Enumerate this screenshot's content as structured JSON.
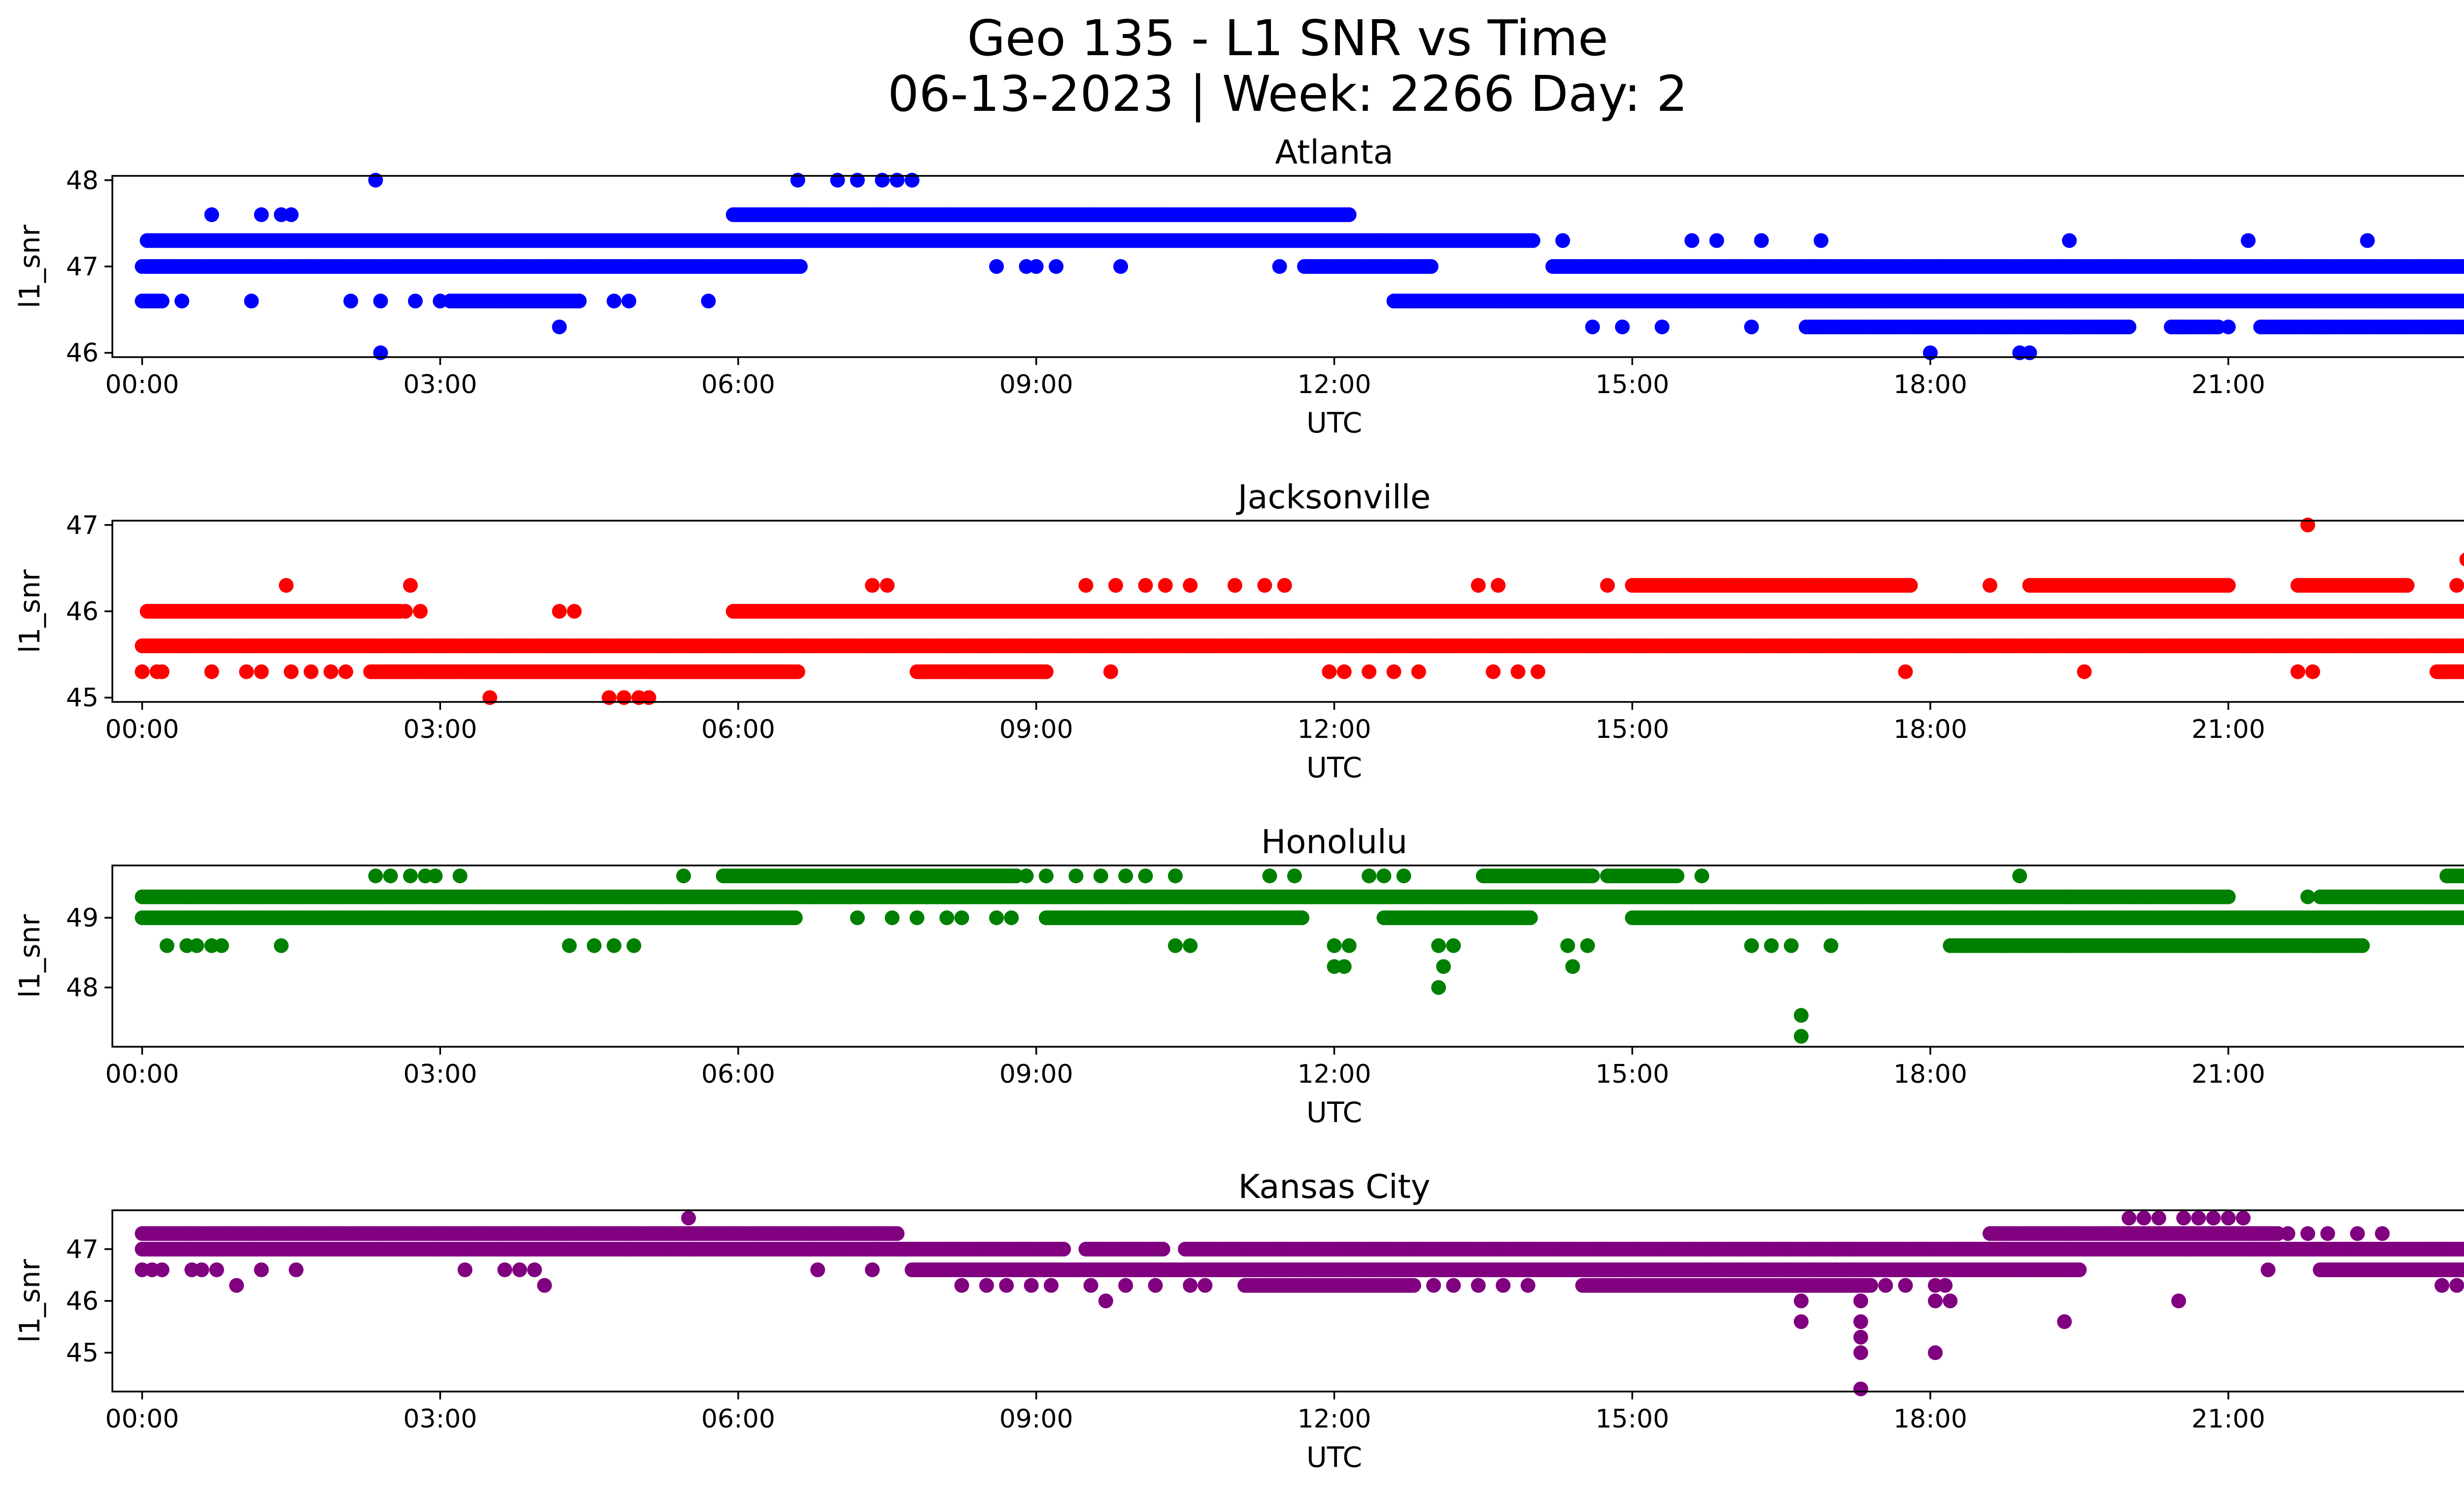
{
  "figure": {
    "title_line1": "Geo 135 - L1 SNR vs Time",
    "title_line2": "06-13-2023 | Week: 2266 Day: 2"
  },
  "chart_data": [
    {
      "type": "scatter",
      "title": "Atlanta",
      "xlabel": "UTC",
      "ylabel": "l1_snr",
      "color": "#0000ff",
      "xlim": [
        -0.3,
        24.3
      ],
      "ylim": [
        45.95,
        48.05
      ],
      "xticks": [
        "00:00",
        "03:00",
        "06:00",
        "09:00",
        "12:00",
        "15:00",
        "18:00",
        "21:00",
        "00:00"
      ],
      "yticks": [
        46,
        47,
        48
      ],
      "runs": [
        {
          "y": 47.0,
          "x0": 0.0,
          "x1": 24.0,
          "gaps": [
            [
              6.65,
              11.7
            ],
            [
              13.0,
              14.2
            ]
          ]
        },
        {
          "y": 47.3,
          "x0": 0.05,
          "x1": 14.0,
          "gaps": []
        },
        {
          "y": 46.6,
          "x0": 0.0,
          "x1": 0.2,
          "gaps": []
        },
        {
          "y": 46.6,
          "x0": 3.1,
          "x1": 4.4,
          "gaps": []
        },
        {
          "y": 46.6,
          "x0": 12.6,
          "x1": 24.0,
          "gaps": []
        },
        {
          "y": 47.6,
          "x0": 5.95,
          "x1": 12.15,
          "gaps": []
        },
        {
          "y": 46.3,
          "x0": 16.75,
          "x1": 24.0,
          "gaps": [
            [
              20.0,
              20.4
            ],
            [
              20.9,
              21.3
            ]
          ]
        }
      ],
      "points": [
        [
          0.7,
          47.6
        ],
        [
          1.2,
          47.6
        ],
        [
          1.4,
          47.6
        ],
        [
          1.5,
          47.6
        ],
        [
          2.35,
          48.0
        ],
        [
          6.6,
          48.0
        ],
        [
          7.0,
          48.0
        ],
        [
          7.2,
          48.0
        ],
        [
          7.45,
          48.0
        ],
        [
          7.6,
          48.0
        ],
        [
          7.75,
          48.0
        ],
        [
          2.4,
          46.0
        ],
        [
          18.0,
          46.0
        ],
        [
          18.9,
          46.0
        ],
        [
          19.0,
          46.0
        ],
        [
          4.2,
          46.3
        ],
        [
          14.6,
          46.3
        ],
        [
          14.9,
          46.3
        ],
        [
          15.3,
          46.3
        ],
        [
          16.2,
          46.3
        ],
        [
          0.4,
          46.6
        ],
        [
          1.1,
          46.6
        ],
        [
          2.1,
          46.6
        ],
        [
          2.4,
          46.6
        ],
        [
          2.75,
          46.6
        ],
        [
          3.0,
          46.6
        ],
        [
          4.75,
          46.6
        ],
        [
          4.9,
          46.6
        ],
        [
          5.7,
          46.6
        ],
        [
          8.6,
          47.0
        ],
        [
          8.9,
          47.0
        ],
        [
          9.0,
          47.0
        ],
        [
          9.2,
          47.0
        ],
        [
          9.85,
          47.0
        ],
        [
          11.45,
          47.0
        ],
        [
          14.3,
          47.3
        ],
        [
          15.6,
          47.3
        ],
        [
          15.85,
          47.3
        ],
        [
          16.3,
          47.3
        ],
        [
          16.9,
          47.3
        ],
        [
          18.1,
          47.0
        ],
        [
          19.3,
          47.0
        ],
        [
          19.4,
          47.3
        ],
        [
          21.2,
          47.3
        ],
        [
          22.4,
          47.3
        ],
        [
          20.5,
          46.3
        ],
        [
          21.0,
          46.3
        ],
        [
          22.0,
          46.3
        ],
        [
          23.5,
          46.3
        ]
      ]
    },
    {
      "type": "scatter",
      "title": "Jacksonville",
      "xlabel": "UTC",
      "ylabel": "l1_snr",
      "color": "#ff0000",
      "xlim": [
        -0.3,
        24.3
      ],
      "ylim": [
        44.95,
        47.05
      ],
      "xticks": [
        "00:00",
        "03:00",
        "06:00",
        "09:00",
        "12:00",
        "15:00",
        "18:00",
        "21:00",
        "00:00"
      ],
      "yticks": [
        45,
        46,
        47
      ],
      "runs": [
        {
          "y": 45.6,
          "x0": 0.0,
          "x1": 24.0,
          "gaps": []
        },
        {
          "y": 46.0,
          "x0": 0.05,
          "x1": 2.6,
          "gaps": []
        },
        {
          "y": 46.0,
          "x0": 5.95,
          "x1": 24.0,
          "gaps": []
        },
        {
          "y": 45.3,
          "x0": 2.3,
          "x1": 6.6,
          "gaps": []
        },
        {
          "y": 45.3,
          "x0": 7.8,
          "x1": 9.1,
          "gaps": []
        },
        {
          "y": 45.3,
          "x0": 23.1,
          "x1": 24.0,
          "gaps": []
        },
        {
          "y": 46.3,
          "x0": 15.0,
          "x1": 17.8,
          "gaps": []
        },
        {
          "y": 46.3,
          "x0": 19.0,
          "x1": 21.0,
          "gaps": []
        },
        {
          "y": 46.3,
          "x0": 21.7,
          "x1": 22.8,
          "gaps": []
        }
      ],
      "points": [
        [
          0.0,
          45.3
        ],
        [
          0.15,
          45.3
        ],
        [
          0.2,
          45.3
        ],
        [
          0.7,
          45.3
        ],
        [
          1.05,
          45.3
        ],
        [
          1.2,
          45.3
        ],
        [
          1.5,
          45.3
        ],
        [
          1.7,
          45.3
        ],
        [
          1.9,
          45.3
        ],
        [
          2.05,
          45.3
        ],
        [
          1.45,
          46.3
        ],
        [
          2.7,
          46.3
        ],
        [
          2.65,
          46.0
        ],
        [
          2.8,
          46.0
        ],
        [
          3.5,
          45.0
        ],
        [
          4.2,
          46.0
        ],
        [
          4.35,
          46.0
        ],
        [
          4.7,
          45.0
        ],
        [
          4.85,
          45.0
        ],
        [
          5.0,
          45.0
        ],
        [
          5.1,
          45.0
        ],
        [
          7.35,
          46.3
        ],
        [
          7.5,
          46.3
        ],
        [
          9.5,
          46.3
        ],
        [
          9.8,
          46.3
        ],
        [
          10.1,
          46.3
        ],
        [
          10.3,
          46.3
        ],
        [
          10.55,
          46.3
        ],
        [
          11.0,
          46.3
        ],
        [
          11.3,
          46.3
        ],
        [
          11.5,
          46.3
        ],
        [
          13.45,
          46.3
        ],
        [
          13.65,
          46.3
        ],
        [
          14.75,
          46.3
        ],
        [
          18.6,
          46.3
        ],
        [
          17.75,
          45.3
        ],
        [
          19.55,
          45.3
        ],
        [
          9.75,
          45.3
        ],
        [
          11.95,
          45.3
        ],
        [
          12.1,
          45.3
        ],
        [
          12.35,
          45.3
        ],
        [
          12.6,
          45.3
        ],
        [
          12.85,
          45.3
        ],
        [
          13.6,
          45.3
        ],
        [
          13.85,
          45.3
        ],
        [
          14.05,
          45.3
        ],
        [
          21.7,
          45.3
        ],
        [
          21.85,
          45.3
        ],
        [
          21.8,
          47.0
        ],
        [
          23.4,
          46.6
        ],
        [
          23.3,
          46.3
        ],
        [
          23.45,
          46.3
        ],
        [
          23.85,
          45.0
        ]
      ]
    },
    {
      "type": "scatter",
      "title": "Honolulu",
      "xlabel": "UTC",
      "ylabel": "l1_snr",
      "color": "#008000",
      "xlim": [
        -0.3,
        24.3
      ],
      "ylim": [
        47.15,
        49.75
      ],
      "xticks": [
        "00:00",
        "03:00",
        "06:00",
        "09:00",
        "12:00",
        "15:00",
        "18:00",
        "21:00",
        "00:00"
      ],
      "yticks": [
        48,
        49
      ],
      "runs": [
        {
          "y": 49.0,
          "x0": 0.0,
          "x1": 24.0,
          "gaps": [
            [
              6.6,
              9.1
            ],
            [
              11.7,
              12.5
            ],
            [
              14.0,
              15.0
            ]
          ]
        },
        {
          "y": 49.3,
          "x0": 0.0,
          "x1": 24.0,
          "gaps": [
            [
              21.0,
              21.9
            ]
          ]
        },
        {
          "y": 49.6,
          "x0": 5.85,
          "x1": 8.8,
          "gaps": []
        },
        {
          "y": 49.6,
          "x0": 13.5,
          "x1": 14.6,
          "gaps": []
        },
        {
          "y": 49.6,
          "x0": 14.75,
          "x1": 15.45,
          "gaps": []
        },
        {
          "y": 49.6,
          "x0": 23.2,
          "x1": 24.0,
          "gaps": []
        },
        {
          "y": 48.6,
          "x0": 18.2,
          "x1": 22.35,
          "gaps": []
        }
      ],
      "points": [
        [
          2.35,
          49.6
        ],
        [
          2.5,
          49.6
        ],
        [
          2.7,
          49.6
        ],
        [
          2.85,
          49.6
        ],
        [
          2.95,
          49.6
        ],
        [
          3.2,
          49.6
        ],
        [
          5.45,
          49.6
        ],
        [
          8.9,
          49.6
        ],
        [
          9.1,
          49.6
        ],
        [
          9.4,
          49.6
        ],
        [
          9.65,
          49.6
        ],
        [
          9.9,
          49.6
        ],
        [
          10.1,
          49.6
        ],
        [
          10.4,
          49.6
        ],
        [
          11.35,
          49.6
        ],
        [
          11.6,
          49.6
        ],
        [
          12.35,
          49.6
        ],
        [
          12.5,
          49.6
        ],
        [
          12.7,
          49.6
        ],
        [
          15.7,
          49.6
        ],
        [
          18.9,
          49.6
        ],
        [
          0.25,
          48.6
        ],
        [
          0.45,
          48.6
        ],
        [
          0.55,
          48.6
        ],
        [
          0.7,
          48.6
        ],
        [
          0.8,
          48.6
        ],
        [
          1.4,
          48.6
        ],
        [
          4.3,
          48.6
        ],
        [
          4.55,
          48.6
        ],
        [
          4.75,
          48.6
        ],
        [
          4.95,
          48.6
        ],
        [
          10.4,
          48.6
        ],
        [
          10.55,
          48.6
        ],
        [
          12.0,
          48.6
        ],
        [
          12.15,
          48.6
        ],
        [
          12.0,
          48.3
        ],
        [
          12.1,
          48.3
        ],
        [
          13.05,
          48.6
        ],
        [
          13.2,
          48.6
        ],
        [
          13.1,
          48.3
        ],
        [
          13.05,
          48.0
        ],
        [
          14.35,
          48.6
        ],
        [
          14.55,
          48.6
        ],
        [
          14.4,
          48.3
        ],
        [
          16.2,
          48.6
        ],
        [
          16.4,
          48.6
        ],
        [
          16.6,
          48.6
        ],
        [
          17.0,
          48.6
        ],
        [
          16.7,
          47.6
        ],
        [
          16.7,
          47.3
        ],
        [
          7.2,
          49.0
        ],
        [
          7.55,
          49.0
        ],
        [
          7.8,
          49.0
        ],
        [
          8.1,
          49.0
        ],
        [
          8.25,
          49.0
        ],
        [
          8.6,
          49.0
        ],
        [
          8.75,
          49.0
        ],
        [
          15.4,
          49.0
        ],
        [
          15.6,
          49.0
        ],
        [
          19.4,
          49.3
        ],
        [
          19.6,
          49.3
        ],
        [
          20.0,
          49.3
        ],
        [
          20.2,
          49.3
        ],
        [
          20.55,
          49.3
        ],
        [
          20.75,
          49.3
        ],
        [
          21.8,
          49.3
        ]
      ]
    },
    {
      "type": "scatter",
      "title": "Kansas City",
      "xlabel": "UTC",
      "ylabel": "l1_snr",
      "color": "#800080",
      "xlim": [
        -0.3,
        24.3
      ],
      "ylim": [
        44.25,
        47.75
      ],
      "xticks": [
        "00:00",
        "03:00",
        "06:00",
        "09:00",
        "12:00",
        "15:00",
        "18:00",
        "21:00",
        "00:00"
      ],
      "yticks": [
        45,
        46,
        47
      ],
      "runs": [
        {
          "y": 47.3,
          "x0": 0.0,
          "x1": 7.6,
          "gaps": []
        },
        {
          "y": 47.0,
          "x0": 0.0,
          "x1": 7.6,
          "gaps": []
        },
        {
          "y": 47.0,
          "x0": 7.6,
          "x1": 24.0,
          "gaps": [
            [
              9.3,
              9.5
            ],
            [
              10.3,
              10.5
            ]
          ]
        },
        {
          "y": 46.6,
          "x0": 7.75,
          "x1": 24.0,
          "gaps": [
            [
              19.5,
              21.9
            ]
          ]
        },
        {
          "y": 46.3,
          "x0": 11.1,
          "x1": 12.8,
          "gaps": []
        },
        {
          "y": 46.3,
          "x0": 14.5,
          "x1": 17.4,
          "gaps": []
        },
        {
          "y": 47.3,
          "x0": 18.6,
          "x1": 21.5,
          "gaps": []
        }
      ],
      "points": [
        [
          0.0,
          46.6
        ],
        [
          0.1,
          46.6
        ],
        [
          0.2,
          46.6
        ],
        [
          0.5,
          46.6
        ],
        [
          0.6,
          46.6
        ],
        [
          0.75,
          46.6
        ],
        [
          1.2,
          46.6
        ],
        [
          1.55,
          46.6
        ],
        [
          0.95,
          46.3
        ],
        [
          4.05,
          46.3
        ],
        [
          3.25,
          46.6
        ],
        [
          3.65,
          46.6
        ],
        [
          3.8,
          46.6
        ],
        [
          3.95,
          46.6
        ],
        [
          6.8,
          46.6
        ],
        [
          5.5,
          47.6
        ],
        [
          7.35,
          46.6
        ],
        [
          8.25,
          46.3
        ],
        [
          8.5,
          46.3
        ],
        [
          8.7,
          46.3
        ],
        [
          8.95,
          46.3
        ],
        [
          9.15,
          46.3
        ],
        [
          9.55,
          46.3
        ],
        [
          9.7,
          46.0
        ],
        [
          9.9,
          46.3
        ],
        [
          10.2,
          46.3
        ],
        [
          10.55,
          46.3
        ],
        [
          10.7,
          46.3
        ],
        [
          13.0,
          46.3
        ],
        [
          13.2,
          46.3
        ],
        [
          13.45,
          46.3
        ],
        [
          13.7,
          46.3
        ],
        [
          13.95,
          46.3
        ],
        [
          16.7,
          46.0
        ],
        [
          16.7,
          45.6
        ],
        [
          17.3,
          46.0
        ],
        [
          17.3,
          45.6
        ],
        [
          17.3,
          45.3
        ],
        [
          17.3,
          45.0
        ],
        [
          17.3,
          44.3
        ],
        [
          17.55,
          46.3
        ],
        [
          17.75,
          46.3
        ],
        [
          18.05,
          46.3
        ],
        [
          18.15,
          46.3
        ],
        [
          18.05,
          46.0
        ],
        [
          18.2,
          46.0
        ],
        [
          18.05,
          45.0
        ],
        [
          19.35,
          45.6
        ],
        [
          20.5,
          46.0
        ],
        [
          19.2,
          46.6
        ],
        [
          19.4,
          46.6
        ],
        [
          21.4,
          46.6
        ],
        [
          20.0,
          47.6
        ],
        [
          20.15,
          47.6
        ],
        [
          20.3,
          47.6
        ],
        [
          20.55,
          47.6
        ],
        [
          20.7,
          47.6
        ],
        [
          20.85,
          47.6
        ],
        [
          21.0,
          47.6
        ],
        [
          21.15,
          47.6
        ],
        [
          21.6,
          47.3
        ],
        [
          21.8,
          47.3
        ],
        [
          22.0,
          47.3
        ],
        [
          22.3,
          47.3
        ],
        [
          22.55,
          47.3
        ],
        [
          23.15,
          46.3
        ],
        [
          23.3,
          46.3
        ],
        [
          23.6,
          46.3
        ],
        [
          23.9,
          46.3
        ],
        [
          24.0,
          47.3
        ],
        [
          15.8,
          47.0
        ],
        [
          16.05,
          47.0
        ],
        [
          16.35,
          47.0
        ],
        [
          16.55,
          47.0
        ],
        [
          16.85,
          47.0
        ],
        [
          17.05,
          47.0
        ],
        [
          17.2,
          47.0
        ]
      ]
    }
  ]
}
